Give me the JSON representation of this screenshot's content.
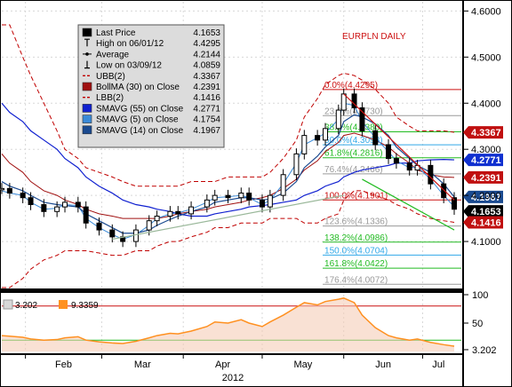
{
  "chart_title": "EURPLN DAILY",
  "legend": [
    {
      "icon": "solid-box",
      "label": "Last Price",
      "value": "4.1653",
      "color": "#000000"
    },
    {
      "icon": "high-marker",
      "label": "High on 06/01/12",
      "value": "4.4295",
      "color": "#000000"
    },
    {
      "icon": "average-marker",
      "label": "Average",
      "value": "4.2144",
      "color": "#000000"
    },
    {
      "icon": "low-marker",
      "label": "Low on 03/09/12",
      "value": "4.0859",
      "color": "#000000"
    },
    {
      "icon": "dash-line",
      "label": "UBB(2)",
      "value": "4.3367",
      "color": "#c00000"
    },
    {
      "icon": "solid-box",
      "label": "BollMA (30) on Close",
      "value": "4.2391",
      "color": "#a01010"
    },
    {
      "icon": "dash-line",
      "label": "LBB(2)",
      "value": "4.1416",
      "color": "#c00000"
    },
    {
      "icon": "solid-box",
      "label": "SMAVG (55) on Close",
      "value": "4.2771",
      "color": "#1020d0"
    },
    {
      "icon": "solid-box",
      "label": "SMAVG (5) on Close",
      "value": "4.1754",
      "color": "#3a8ad8"
    },
    {
      "icon": "solid-box",
      "label": "SMAVG (14) on Close",
      "value": "4.1967",
      "color": "#1a4a90"
    }
  ],
  "price_axis": {
    "ticks": [
      "4.6000",
      "4.5000",
      "4.4000",
      "4.3000",
      "4.2000",
      "4.1000"
    ]
  },
  "price_tags": [
    {
      "label": "4.3367",
      "value": 4.3367,
      "color": "#c01010"
    },
    {
      "label": "4.2771",
      "value": 4.2771,
      "color": "#1030d0"
    },
    {
      "label": "4.2391",
      "value": 4.2391,
      "color": "#c01010"
    },
    {
      "label": "4.1967",
      "value": 4.1967,
      "color": "#1a4a90"
    },
    {
      "label": "4.1653",
      "value": 4.1653,
      "color": "#000000"
    },
    {
      "label": "4.1416",
      "value": 4.1416,
      "color": "#c01010"
    }
  ],
  "fib_levels": [
    {
      "label": "0.0%(4.4295)",
      "value": 4.4295,
      "color": "#cc1010"
    },
    {
      "label": "23.6%(4.3730)",
      "value": 4.373,
      "color": "#9a9a9a"
    },
    {
      "label": "38.2%(4.3380)",
      "value": 4.338,
      "color": "#22bb22"
    },
    {
      "label": "50.0%(4.3098)",
      "value": 4.3098,
      "color": "#30a8e8"
    },
    {
      "label": "61.8%(4.2816)",
      "value": 4.2816,
      "color": "#22bb22"
    },
    {
      "label": "76.4%(4.2466)",
      "value": 4.2466,
      "color": "#9a9a9a"
    },
    {
      "label": "100.0%(4.1901)",
      "value": 4.1901,
      "color": "#cc1010"
    },
    {
      "label": "123.6%(4.1336)",
      "value": 4.1336,
      "color": "#9a9a9a"
    },
    {
      "label": "138.2%(4.0986)",
      "value": 4.0986,
      "color": "#22bb22"
    },
    {
      "label": "150.0%(4.0704)",
      "value": 4.0704,
      "color": "#30a8e8"
    },
    {
      "label": "161.8%(4.0422)",
      "value": 4.0422,
      "color": "#22bb22"
    },
    {
      "label": "176.4%(4.0072)",
      "value": 4.0072,
      "color": "#9a9a9a"
    }
  ],
  "lower_panel": {
    "legend": [
      {
        "label": "3.202",
        "color": "#cccccc"
      },
      {
        "label": "9.3359",
        "color": "#ff9020"
      }
    ],
    "ticks": [
      "100",
      "50",
      "3.202"
    ],
    "ylim": [
      0,
      100
    ],
    "overbought": 80,
    "oversold": 20
  },
  "x_axis": {
    "months": [
      "Feb",
      "Mar",
      "Apr",
      "May",
      "Jun",
      "Jul"
    ],
    "year": "2012"
  },
  "chart_data": {
    "type": "line",
    "ylim": [
      4.0,
      4.62
    ],
    "x_range": [
      "2012-01-23",
      "2012-07-13"
    ],
    "month_starts": [
      "2012-02-01",
      "2012-03-01",
      "2012-04-01",
      "2012-05-01",
      "2012-06-01",
      "2012-07-01"
    ],
    "dates": [
      "2012-01-23",
      "2012-01-26",
      "2012-01-31",
      "2012-02-03",
      "2012-02-08",
      "2012-02-13",
      "2012-02-16",
      "2012-02-21",
      "2012-02-24",
      "2012-02-29",
      "2012-03-05",
      "2012-03-09",
      "2012-03-14",
      "2012-03-19",
      "2012-03-22",
      "2012-03-27",
      "2012-03-30",
      "2012-04-04",
      "2012-04-10",
      "2012-04-13",
      "2012-04-18",
      "2012-04-23",
      "2012-04-26",
      "2012-05-01",
      "2012-05-04",
      "2012-05-09",
      "2012-05-14",
      "2012-05-17",
      "2012-05-22",
      "2012-05-25",
      "2012-05-30",
      "2012-06-01",
      "2012-06-05",
      "2012-06-08",
      "2012-06-13",
      "2012-06-18",
      "2012-06-21",
      "2012-06-26",
      "2012-06-29",
      "2012-07-04",
      "2012-07-09",
      "2012-07-13"
    ],
    "series": [
      {
        "name": "Last Price",
        "values": [
          4.215,
          4.205,
          4.195,
          4.18,
          4.165,
          4.175,
          4.185,
          4.175,
          4.14,
          4.125,
          4.11,
          4.1,
          4.125,
          4.145,
          4.155,
          4.165,
          4.16,
          4.175,
          4.19,
          4.2,
          4.195,
          4.205,
          4.19,
          4.175,
          4.2,
          4.245,
          4.29,
          4.33,
          4.32,
          4.345,
          4.385,
          4.42,
          4.39,
          4.34,
          4.31,
          4.28,
          4.27,
          4.255,
          4.265,
          4.225,
          4.195,
          4.17
        ]
      },
      {
        "name": "UBB(2)",
        "values": [
          4.57,
          4.57,
          4.5,
          4.46,
          4.4,
          4.34,
          4.3,
          4.28,
          4.26,
          4.25,
          4.24,
          4.23,
          4.22,
          4.22,
          4.22,
          4.22,
          4.22,
          4.23,
          4.23,
          4.23,
          4.24,
          4.24,
          4.24,
          4.24,
          4.25,
          4.28,
          4.32,
          4.37,
          4.41,
          4.44,
          4.46,
          4.465,
          4.46,
          4.45,
          4.43,
          4.4,
          4.37,
          4.35,
          4.34,
          4.34,
          4.34,
          4.337
        ]
      },
      {
        "name": "BollMA (30) on Close",
        "values": [
          4.29,
          4.27,
          4.25,
          4.23,
          4.21,
          4.2,
          4.19,
          4.18,
          4.17,
          4.16,
          4.155,
          4.15,
          4.15,
          4.15,
          4.15,
          4.155,
          4.16,
          4.165,
          4.17,
          4.175,
          4.18,
          4.185,
          4.19,
          4.195,
          4.2,
          4.215,
          4.235,
          4.255,
          4.275,
          4.295,
          4.315,
          4.33,
          4.335,
          4.33,
          4.32,
          4.305,
          4.29,
          4.27,
          4.255,
          4.245,
          4.24,
          4.239
        ]
      },
      {
        "name": "LBB(2)",
        "values": [
          4.0,
          4.0,
          4.02,
          4.04,
          4.06,
          4.07,
          4.08,
          4.08,
          4.08,
          4.075,
          4.07,
          4.07,
          4.08,
          4.08,
          4.09,
          4.1,
          4.1,
          4.11,
          4.12,
          4.13,
          4.13,
          4.14,
          4.14,
          4.14,
          4.15,
          4.15,
          4.15,
          4.14,
          4.14,
          4.15,
          4.16,
          4.19,
          4.21,
          4.21,
          4.2,
          4.19,
          4.18,
          4.17,
          4.16,
          4.15,
          4.145,
          4.1416
        ]
      },
      {
        "name": "SMAVG (55) on Close",
        "values": [
          4.4,
          4.38,
          4.36,
          4.34,
          4.32,
          4.3,
          4.28,
          4.26,
          4.24,
          4.22,
          4.205,
          4.19,
          4.18,
          4.175,
          4.17,
          4.165,
          4.16,
          4.155,
          4.155,
          4.16,
          4.165,
          4.17,
          4.175,
          4.178,
          4.18,
          4.185,
          4.19,
          4.2,
          4.21,
          4.22,
          4.23,
          4.24,
          4.25,
          4.255,
          4.26,
          4.265,
          4.27,
          4.27,
          4.275,
          4.277,
          4.278,
          4.2771
        ]
      },
      {
        "name": "SMAVG (5) on Close",
        "values": [
          4.21,
          4.205,
          4.2,
          4.185,
          4.17,
          4.172,
          4.18,
          4.178,
          4.15,
          4.13,
          4.115,
          4.105,
          4.115,
          4.135,
          4.15,
          4.16,
          4.162,
          4.17,
          4.185,
          4.195,
          4.197,
          4.2,
          4.195,
          4.18,
          4.19,
          4.225,
          4.27,
          4.31,
          4.325,
          4.335,
          4.365,
          4.4,
          4.395,
          4.36,
          4.325,
          4.295,
          4.275,
          4.26,
          4.262,
          4.235,
          4.2,
          4.1754
        ]
      },
      {
        "name": "SMAVG (14) on Close",
        "values": [
          4.23,
          4.22,
          4.21,
          4.2,
          4.185,
          4.18,
          4.178,
          4.175,
          4.16,
          4.145,
          4.13,
          4.118,
          4.118,
          4.125,
          4.135,
          4.148,
          4.155,
          4.165,
          4.175,
          4.185,
          4.19,
          4.195,
          4.195,
          4.19,
          4.192,
          4.205,
          4.23,
          4.26,
          4.285,
          4.305,
          4.33,
          4.36,
          4.375,
          4.37,
          4.355,
          4.33,
          4.305,
          4.28,
          4.265,
          4.25,
          4.225,
          4.1967
        ]
      },
      {
        "name": "9.3359",
        "panel": "lower",
        "values": [
          28,
          27,
          25,
          22,
          20,
          21,
          24,
          26,
          20,
          17,
          15,
          14,
          18,
          24,
          28,
          32,
          31,
          36,
          44,
          52,
          50,
          56,
          50,
          44,
          52,
          64,
          78,
          86,
          82,
          88,
          92,
          94,
          86,
          64,
          42,
          28,
          24,
          20,
          22,
          16,
          12,
          9.3
        ]
      }
    ],
    "trendlines": [
      {
        "name": "upper-channel",
        "from": [
          "2012-06-01",
          4.42
        ],
        "to": [
          "2012-07-13",
          4.19
        ]
      },
      {
        "name": "lower-channel",
        "from": [
          "2012-06-08",
          4.235
        ],
        "to": [
          "2012-07-13",
          4.125
        ]
      },
      {
        "name": "support-line",
        "from": [
          "2012-03-05",
          4.105
        ],
        "to": [
          "2012-06-01",
          4.2
        ]
      }
    ]
  }
}
